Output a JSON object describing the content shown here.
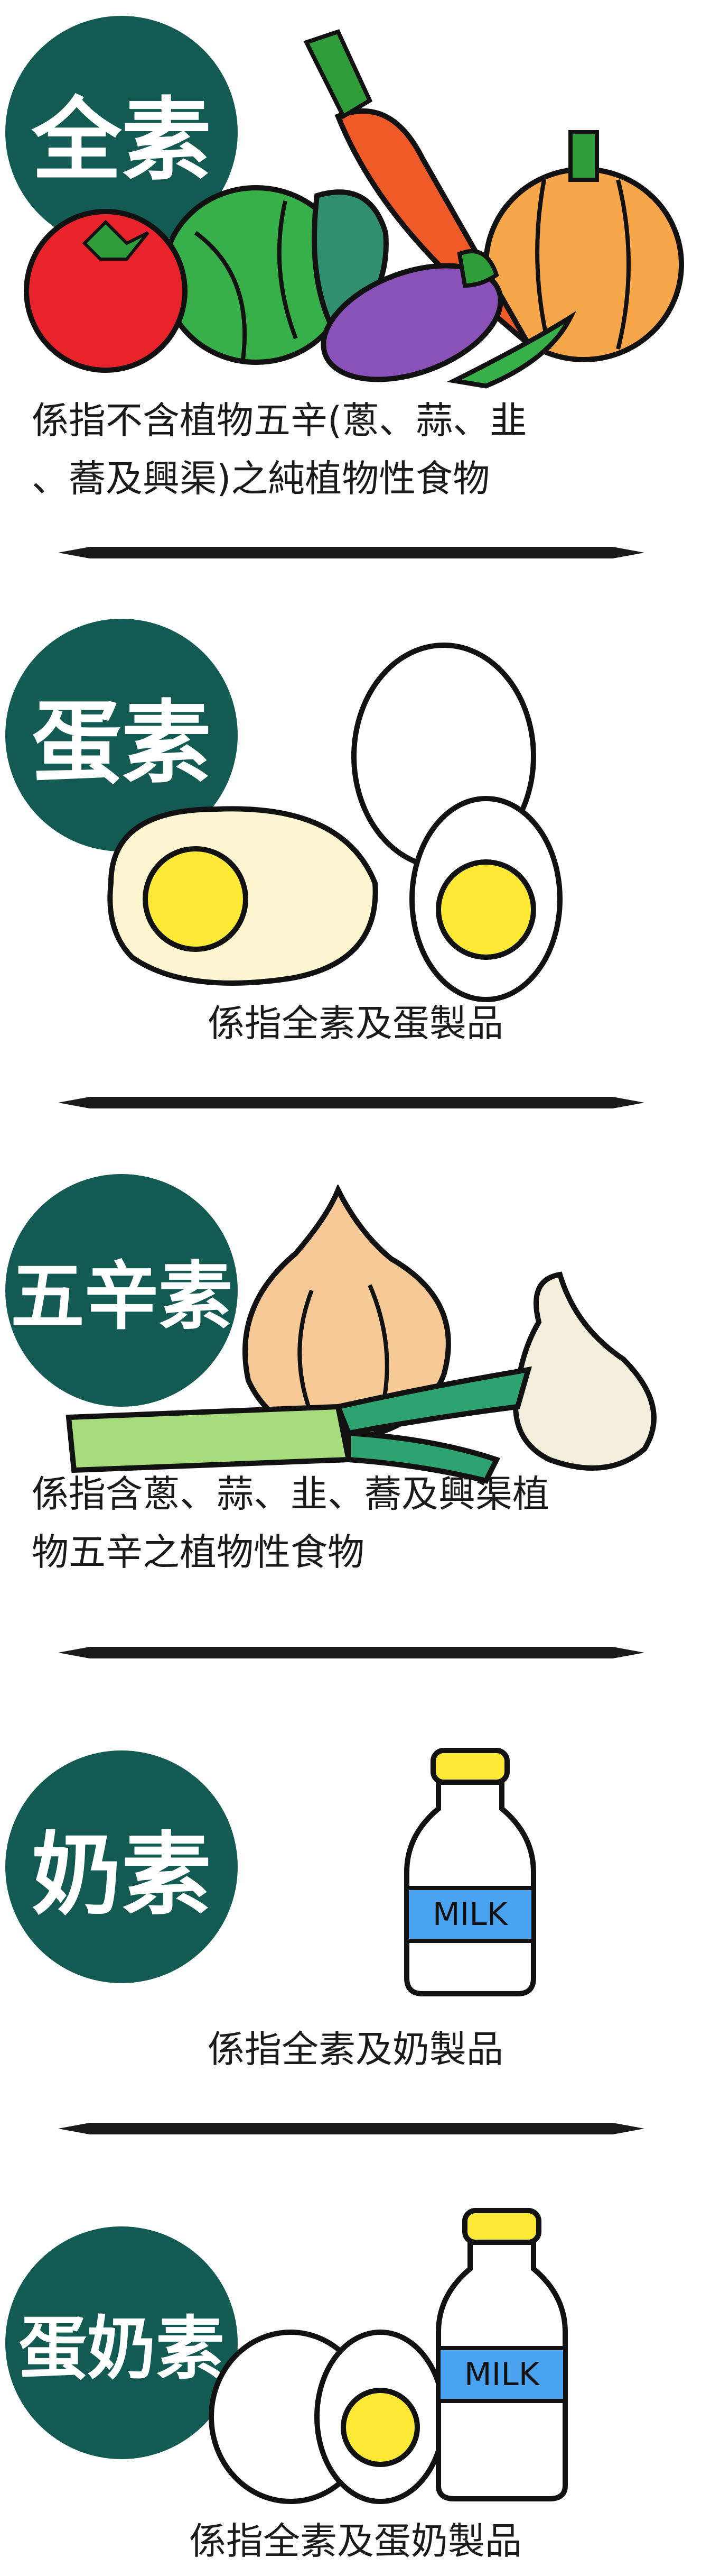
{
  "colors": {
    "badge": "#125a52",
    "badge_text": "#ffffff",
    "text": "#1a1a1a",
    "divider": "#1a1a1a",
    "yolk": "#fde936",
    "milk_label": "#4aa3f0"
  },
  "sections": [
    {
      "badge": "全素",
      "lines": [
        "係指不含植物五辛(蔥、蒜、韭",
        "、蕎及興渠)之純植物性食物"
      ],
      "icon": "vegetables-icon"
    },
    {
      "badge": "蛋素",
      "lines": [
        "係指全素及蛋製品"
      ],
      "icon": "eggs-icon"
    },
    {
      "badge": "五辛素",
      "lines": [
        "係指含蔥、蒜、韭、蕎及興渠植",
        "物五辛之植物性食物"
      ],
      "icon": "allium-icon"
    },
    {
      "badge": "奶素",
      "lines": [
        "係指全素及奶製品"
      ],
      "icon": "milk-bottle-icon"
    },
    {
      "badge": "蛋奶素",
      "lines": [
        "係指全素及蛋奶製品"
      ],
      "icon": "eggs-and-milk-icon"
    }
  ],
  "milk_label": "MILK"
}
